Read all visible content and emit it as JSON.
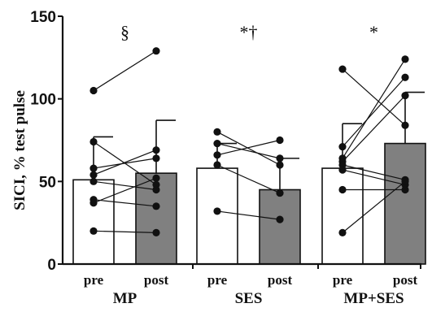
{
  "chart_data": {
    "type": "bar",
    "ylabel": "SICI, % test pulse",
    "ylim": [
      0,
      150
    ],
    "yticks": [
      0,
      50,
      100,
      150
    ],
    "grid": false,
    "groups": [
      {
        "name": "MP",
        "annotation": "§",
        "bars": [
          {
            "condition": "pre",
            "mean": 51,
            "sd_upper": 77,
            "fill": "#ffffff"
          },
          {
            "condition": "post",
            "mean": 55,
            "sd_upper": 87,
            "fill": "#808080"
          }
        ],
        "subjects": [
          [
            105,
            129
          ],
          [
            74,
            48
          ],
          [
            58,
            64
          ],
          [
            54,
            69
          ],
          [
            50,
            45
          ],
          [
            39,
            35
          ],
          [
            37,
            52
          ],
          [
            20,
            19
          ]
        ]
      },
      {
        "name": "SES",
        "annotation": "*†",
        "bars": [
          {
            "condition": "pre",
            "mean": 58,
            "sd_upper": 73,
            "fill": "#ffffff"
          },
          {
            "condition": "post",
            "mean": 45,
            "sd_upper": 64,
            "fill": "#808080"
          }
        ],
        "subjects": [
          [
            80,
            60
          ],
          [
            73,
            64
          ],
          [
            66,
            75
          ],
          [
            60,
            43
          ],
          [
            32,
            27
          ]
        ]
      },
      {
        "name": "MP+SES",
        "annotation": "*",
        "bars": [
          {
            "condition": "pre",
            "mean": 58,
            "sd_upper": 85,
            "fill": "#ffffff"
          },
          {
            "condition": "post",
            "mean": 73,
            "sd_upper": 104,
            "fill": "#808080"
          }
        ],
        "subjects": [
          [
            118,
            84
          ],
          [
            71,
            113
          ],
          [
            64,
            124
          ],
          [
            62,
            102
          ],
          [
            60,
            51
          ],
          [
            57,
            48
          ],
          [
            45,
            45
          ],
          [
            19,
            50
          ]
        ]
      }
    ]
  }
}
